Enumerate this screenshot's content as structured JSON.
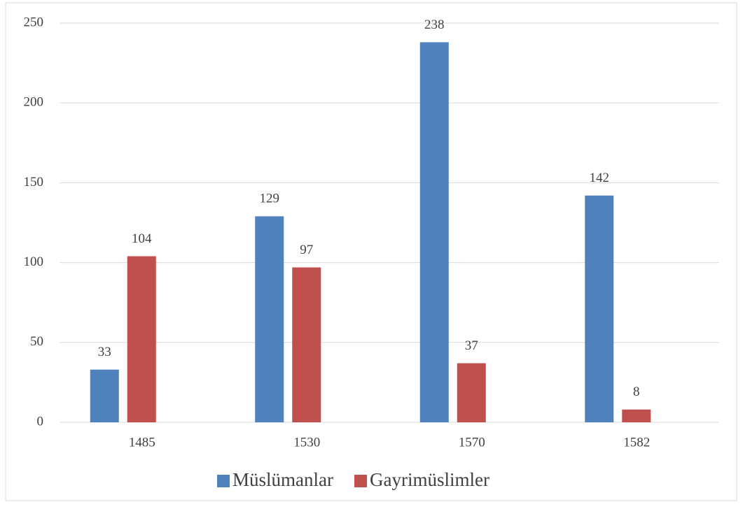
{
  "chart_data": {
    "type": "bar",
    "categories": [
      "1485",
      "1530",
      "1570",
      "1582"
    ],
    "series": [
      {
        "name": "Müslümanlar",
        "color": "#4f81bd",
        "values": [
          33,
          129,
          238,
          142
        ]
      },
      {
        "name": "Gayrimüslimler",
        "color": "#c0504d",
        "values": [
          104,
          97,
          37,
          8
        ]
      }
    ],
    "ylim": [
      0,
      250
    ],
    "yticks": [
      0,
      50,
      100,
      150,
      200,
      250
    ],
    "grid": true,
    "legend": "bottom"
  }
}
